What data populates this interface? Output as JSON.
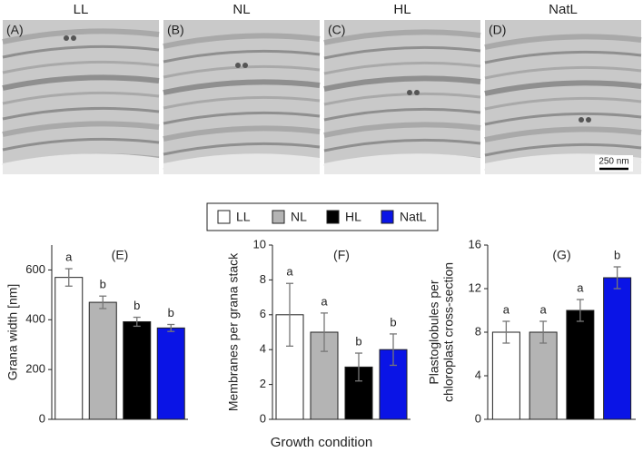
{
  "micrographs": [
    {
      "title": "LL",
      "label": "(A)"
    },
    {
      "title": "NL",
      "label": "(B)"
    },
    {
      "title": "HL",
      "label": "(C)"
    },
    {
      "title": "NatL",
      "label": "(D)"
    }
  ],
  "scale_bar": "250 nm",
  "legend": [
    {
      "name": "LL",
      "color": "#ffffff"
    },
    {
      "name": "NL",
      "color": "#b4b4b4"
    },
    {
      "name": "HL",
      "color": "#000000"
    },
    {
      "name": "NatL",
      "color": "#0a14e6"
    }
  ],
  "xlabel": "Growth condition",
  "chart_data": [
    {
      "type": "bar",
      "title": "(E)",
      "ylabel": [
        "Grana width [nm]"
      ],
      "values": [
        570,
        470,
        392,
        367
      ],
      "errors": [
        35,
        25,
        18,
        14
      ],
      "annotations": [
        "a",
        "b",
        "b",
        "b"
      ],
      "ylim": [
        0,
        700
      ],
      "yticks": [
        0,
        200,
        400,
        600
      ]
    },
    {
      "type": "bar",
      "title": "(F)",
      "ylabel": [
        "Membranes per grana stack"
      ],
      "values": [
        6,
        5,
        3,
        4
      ],
      "errors": [
        1.8,
        1.1,
        0.8,
        0.9
      ],
      "annotations": [
        "a",
        "a",
        "b",
        "b"
      ],
      "ylim": [
        0,
        10
      ],
      "yticks": [
        0,
        2,
        4,
        6,
        8,
        10
      ]
    },
    {
      "type": "bar",
      "title": "(G)",
      "ylabel": [
        "Plastoglobules per",
        "chloroplast cross-section"
      ],
      "values": [
        8,
        8,
        10,
        13
      ],
      "errors": [
        1,
        1,
        1,
        1
      ],
      "annotations": [
        "a",
        "a",
        "a",
        "b"
      ],
      "ylim": [
        0,
        16
      ],
      "yticks": [
        0,
        4,
        8,
        12,
        16
      ]
    }
  ]
}
